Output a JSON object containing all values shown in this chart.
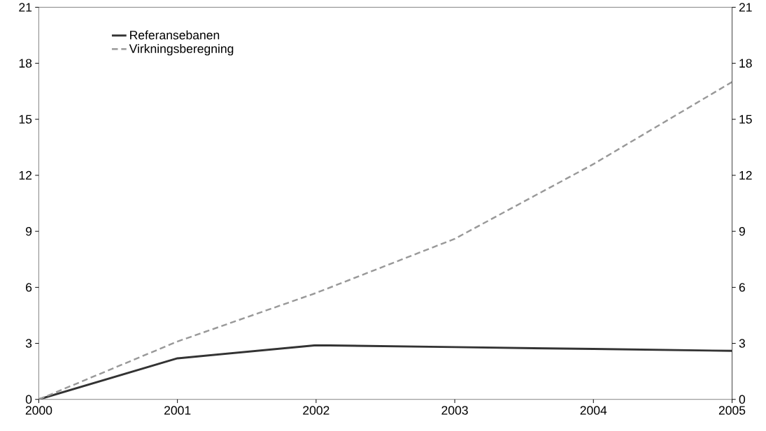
{
  "chart_data": {
    "type": "line",
    "x": [
      2000,
      2001,
      2002,
      2003,
      2004,
      2005
    ],
    "series": [
      {
        "name": "Referansebanen",
        "color": "#333333",
        "line_style": "solid",
        "values": [
          0,
          2.2,
          2.9,
          2.8,
          2.7,
          2.6
        ]
      },
      {
        "name": "Virkningsberegning",
        "color": "#999999",
        "line_style": "dashed",
        "values": [
          0,
          3.1,
          5.7,
          8.6,
          12.6,
          17.0
        ]
      }
    ],
    "xlim": [
      2000,
      2005
    ],
    "xticks": [
      2000,
      2001,
      2002,
      2003,
      2004,
      2005
    ],
    "ylim": [
      0,
      21
    ],
    "yticks": [
      0,
      3,
      6,
      9,
      12,
      15,
      18,
      21
    ],
    "y2lim": [
      0,
      21
    ],
    "y2ticks": [
      0,
      3,
      6,
      9,
      12,
      15,
      18,
      21
    ],
    "grid": false,
    "legend": "top left",
    "marker": "none"
  }
}
